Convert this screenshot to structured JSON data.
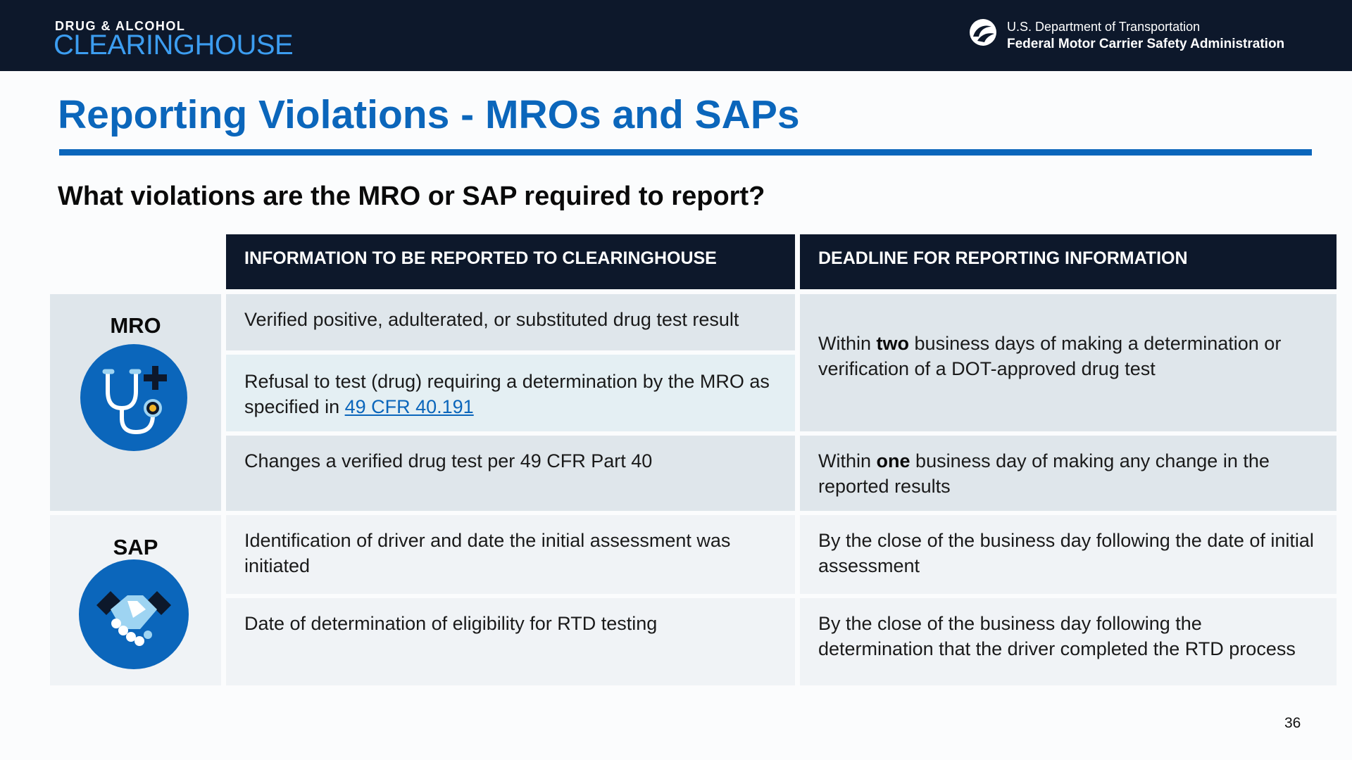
{
  "header": {
    "logo_top": "DRUG & ALCOHOL",
    "logo_main": "CLEARINGHOUSE",
    "agency_line1": "U.S. Department of Transportation",
    "agency_line2": "Federal Motor Carrier Safety Administration"
  },
  "title": "Reporting Violations - MROs and SAPs",
  "question": "What violations are the MRO or SAP required to report?",
  "table": {
    "col_headers": [
      "INFORMATION TO BE REPORTED TO CLEARINGHOUSE",
      "DEADLINE FOR REPORTING INFORMATION"
    ],
    "groups": [
      {
        "label": "MRO",
        "icon": "stethoscope-icon",
        "rows": [
          {
            "info": "Verified positive, adulterated, or substituted drug test result"
          },
          {
            "info_prefix": "Refusal to test (drug) requiring a determination by the MRO as specified in ",
            "info_link": "49 CFR 40.191"
          },
          {
            "info": "Changes a verified drug test per 49 CFR Part 40"
          }
        ],
        "deadlines": [
          {
            "pre": "Within ",
            "bold": "two",
            "post": " business days of making a determination or verification of a DOT-approved drug test"
          },
          {
            "pre": "Within ",
            "bold": "one",
            "post": " business day of making any change in the reported results"
          }
        ]
      },
      {
        "label": "SAP",
        "icon": "handshake-icon",
        "rows": [
          {
            "info": "Identification of driver and date the initial assessment was initiated",
            "deadline": "By the close of the business day following the date of initial assessment"
          },
          {
            "info": "Date of determination of eligibility for RTD testing",
            "deadline": "By the close of the business day following the determination that the driver completed the RTD process"
          }
        ]
      }
    ]
  },
  "page_number": "36",
  "colors": {
    "navy": "#0d182b",
    "brand_blue": "#0b66bb",
    "logo_blue": "#3c9df0",
    "mro_cell": "#dfe6eb",
    "mro_cell_alt": "#e4eff3",
    "sap_cell": "#f0f3f6"
  }
}
